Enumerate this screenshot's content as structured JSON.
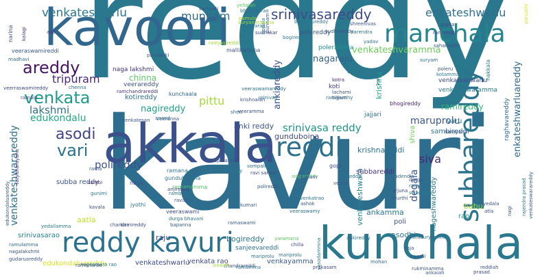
{
  "words": [
    {
      "text": "reddy",
      "color": "#2a788e"
    },
    {
      "text": "kavuri",
      "color": "#2d6e8e"
    },
    {
      "text": "kavoori",
      "color": "#31668e"
    },
    {
      "text": "akkala",
      "color": "#3b518b"
    },
    {
      "text": "kunchala",
      "color": "#2a788e"
    },
    {
      "text": "reddy kavuri",
      "color": "#2c728e"
    },
    {
      "text": "manchala",
      "color": "#25858e"
    },
    {
      "text": "subbareddy",
      "color": "#2c738e"
    },
    {
      "text": "reddi",
      "color": "#2d708e"
    },
    {
      "text": "srinivasareddy",
      "color": "#3e4c8a"
    },
    {
      "text": "venkateswarlu",
      "color": "#2a778e"
    },
    {
      "text": "areddy",
      "color": "#471365"
    },
    {
      "text": "venkata",
      "color": "#1f9a8a"
    },
    {
      "text": "asodi",
      "color": "#414487"
    },
    {
      "text": "vari",
      "color": "#2c728e"
    },
    {
      "text": "munnam",
      "color": "#31688e"
    },
    {
      "text": "enkateshwarlu",
      "color": "#2e6f8e"
    },
    {
      "text": "venkateshvaramma",
      "color": "#6ece58"
    },
    {
      "text": "nagaraju",
      "color": "#355f8d"
    },
    {
      "text": "tripuram",
      "color": "#482979"
    },
    {
      "text": "lakshmi",
      "color": "#2c718e"
    },
    {
      "text": "edukondalu",
      "color": "#22a884"
    },
    {
      "text": "pittu",
      "color": "#a5db36"
    },
    {
      "text": "nagireddy",
      "color": "#1fa088"
    },
    {
      "text": "ankiareddy",
      "color": "#3a548c"
    },
    {
      "text": "srinivasa reddy",
      "color": "#1f968b"
    },
    {
      "text": "maruprolu",
      "color": "#39568c"
    },
    {
      "text": "ramireddy",
      "color": "#35b779"
    },
    {
      "text": "venkateshwarareddy",
      "color": "#2e6f8e"
    },
    {
      "text": "polireddy",
      "color": "#3a538b"
    },
    {
      "text": "siva",
      "color": "#482576"
    },
    {
      "text": "degala",
      "color": "#3c4f8a"
    },
    {
      "text": "enkateshwarluareddy",
      "color": "#31688e"
    },
    {
      "text": "kotireddy",
      "color": "#2d708e"
    },
    {
      "text": "chinna",
      "color": "#5ec962"
    },
    {
      "text": "anki reddy",
      "color": "#3b528b"
    },
    {
      "text": "gunduboina",
      "color": "#3e4989"
    },
    {
      "text": "krishnareddi",
      "color": "#2c738e"
    },
    {
      "text": "venkateshwara",
      "color": "#26828e"
    },
    {
      "text": "subbareddi",
      "color": "#46337f"
    },
    {
      "text": "ankamma",
      "color": "#2a788e"
    },
    {
      "text": "babu",
      "color": "#a0da39"
    },
    {
      "text": "bogireddy",
      "color": "#2c728e"
    },
    {
      "text": "raju",
      "color": "#3b518b"
    },
    {
      "text": "sanjeevareddi",
      "color": "#2d708e"
    },
    {
      "text": "venkata rao",
      "color": "#3e4a89"
    },
    {
      "text": "venkayamma",
      "color": "#38588c"
    },
    {
      "text": "venkateshwarlu",
      "color": "#3f4788"
    },
    {
      "text": "asodhi",
      "color": "#2c738e"
    },
    {
      "text": "poli",
      "color": "#3a548c"
    },
    {
      "text": "rao",
      "color": "#1e9c89"
    },
    {
      "text": "nageshwareddy",
      "color": "#2a788e"
    },
    {
      "text": "sambireddi",
      "color": "#2d718e"
    },
    {
      "text": "krishna",
      "color": "#1fa187"
    },
    {
      "text": "aatla",
      "color": "#c2df23"
    },
    {
      "text": "subba reddy",
      "color": "#3b528b"
    },
    {
      "text": "srinivasarao",
      "color": "#26828e"
    },
    {
      "text": "edukondaluareddy",
      "color": "#d8e219"
    },
    {
      "text": "varu",
      "color": "#2a788e"
    },
    {
      "text": "shiva",
      "color": "#6ece58"
    },
    {
      "text": "raghavareddy",
      "color": "#31688e"
    },
    {
      "text": "venkateswaramma",
      "color": "#2a788e"
    },
    {
      "text": "venkateshwarlu",
      "color": "#3e4a89"
    },
    {
      "text": "bhogireddy",
      "color": "#482475"
    },
    {
      "text": "koti",
      "color": "#443983"
    },
    {
      "text": "kotra",
      "color": "#481f70"
    },
    {
      "text": "lachami",
      "color": "#3a548c"
    },
    {
      "text": "veerareddy",
      "color": "#3b528b"
    },
    {
      "text": "polereddy",
      "color": "#3a538b"
    },
    {
      "text": "poleramma",
      "color": "#1f948c"
    },
    {
      "text": "bysani",
      "color": "#2a778e"
    },
    {
      "text": "jajjari",
      "color": "#2c728e"
    },
    {
      "text": "naga lakshmi",
      "color": "#46317e"
    },
    {
      "text": "kunchaala",
      "color": "#31688e"
    },
    {
      "text": "ramchandrareddi",
      "color": "#46317e"
    },
    {
      "text": "gunduboyina",
      "color": "#2c738e"
    },
    {
      "text": "veeramma",
      "color": "#3e4a89"
    },
    {
      "text": "ramana",
      "color": "#2c728e"
    },
    {
      "text": "naga",
      "color": "#3b528b"
    },
    {
      "text": "jyothi",
      "color": "#2d718e"
    },
    {
      "text": "veeraswami",
      "color": "#3e4989"
    },
    {
      "text": "ramanamma",
      "color": "#52c569"
    },
    {
      "text": "sambi",
      "color": "#46317e"
    },
    {
      "text": "gunimi",
      "color": "#2a788e"
    },
    {
      "text": "ravuri",
      "color": "#3a548c"
    },
    {
      "text": "rambabu",
      "color": "#2d708e"
    },
    {
      "text": "anjireddy",
      "color": "#414487"
    },
    {
      "text": "mariprolu",
      "color": "#2c728e"
    },
    {
      "text": "chandrareddi",
      "color": "#3b528b"
    },
    {
      "text": "brahmareddy",
      "color": "#2a788e"
    },
    {
      "text": "tirupatamma",
      "color": "#3b518b"
    },
    {
      "text": "singareddy",
      "color": "#5ec962"
    },
    {
      "text": "rani",
      "color": "#2d708e"
    },
    {
      "text": "veera",
      "color": "#38588c"
    },
    {
      "text": "gopi",
      "color": "#3e4a89"
    },
    {
      "text": "pynam",
      "color": "#3b528b"
    },
    {
      "text": "venkatrao",
      "color": "#2c738e"
    },
    {
      "text": "kumari",
      "color": "#3a538b"
    },
    {
      "text": "ashok",
      "color": "#38588c"
    },
    {
      "text": "veeraswamy",
      "color": "#2d708e"
    },
    {
      "text": "murthi",
      "color": "#3b528b"
    },
    {
      "text": "sivareddy",
      "color": "#2a788e"
    },
    {
      "text": "ramarao",
      "color": "#2d708e"
    },
    {
      "text": "arjuna",
      "color": "#3e4a89"
    },
    {
      "text": "durga",
      "color": "#3b528b"
    },
    {
      "text": "nadendla",
      "color": "#31688e"
    },
    {
      "text": "edda",
      "color": "#2c728e"
    },
    {
      "text": "sudhakar",
      "color": "#3e4989"
    },
    {
      "text": "anji",
      "color": "#46317e"
    },
    {
      "text": "ramireddi",
      "color": "#3e4a89"
    },
    {
      "text": "bikshalureddy",
      "color": "#2c738e"
    },
    {
      "text": "shreenivas",
      "color": "#3a548c"
    },
    {
      "text": "narendra",
      "color": "#2d708e"
    },
    {
      "text": "bogireddi",
      "color": "#2a788e"
    },
    {
      "text": "ramjogireddi",
      "color": "#a0da39"
    },
    {
      "text": "veeraswamireddi",
      "color": "#38588c"
    },
    {
      "text": "pandanki",
      "color": "#3b528b"
    },
    {
      "text": "madhavi",
      "color": "#31688e"
    },
    {
      "text": "veerraswamireddy",
      "color": "#3e4989"
    },
    {
      "text": "chenna",
      "color": "#2d708e"
    },
    {
      "text": "venkatesan",
      "color": "#3b528b"
    },
    {
      "text": "sheo",
      "color": "#2c728e"
    },
    {
      "text": "veeranna",
      "color": "#3a548c"
    },
    {
      "text": "rama",
      "color": "#38588c"
    },
    {
      "text": "kavala",
      "color": "#3e4a89"
    },
    {
      "text": "yedallamma",
      "color": "#2a788e"
    },
    {
      "text": "ramulamma",
      "color": "#2d708e"
    },
    {
      "text": "nagalakshmi",
      "color": "#3b528b"
    },
    {
      "text": "gudaruareddy",
      "color": "#3a548c"
    },
    {
      "text": "nagesmara rao",
      "color": "#2c738e"
    },
    {
      "text": "yaramana",
      "color": "#5ec962"
    },
    {
      "text": "ankireddy",
      "color": "#2c728e"
    },
    {
      "text": "chilla",
      "color": "#3e4989"
    },
    {
      "text": "anasuryamma",
      "color": "#31688e"
    },
    {
      "text": "yedala",
      "color": "#3b528b"
    },
    {
      "text": "atla",
      "color": "#3e4a89"
    },
    {
      "text": "rajendra prasad",
      "color": "#2d708e"
    },
    {
      "text": "venkateswarareddy",
      "color": "#3a548c"
    },
    {
      "text": "satyanarayana",
      "color": "#46317e"
    },
    {
      "text": "edukondaluareddy",
      "color": "#3b528b"
    },
    {
      "text": "yasodammna",
      "color": "#2a788e"
    },
    {
      "text": "nagi",
      "color": "#3e4a89"
    },
    {
      "text": "swami",
      "color": "#3b528b"
    },
    {
      "text": "sompalli",
      "color": "#2c728e"
    },
    {
      "text": "bijjam",
      "color": "#3e4989"
    },
    {
      "text": "ramaswami",
      "color": "#38588c"
    },
    {
      "text": "mariprolu",
      "color": "#2d708e"
    },
    {
      "text": "saharaeddi",
      "color": "#3a548c"
    },
    {
      "text": "narina",
      "color": "#3e4a89"
    },
    {
      "text": "nakkala",
      "color": "#2a788e"
    },
    {
      "text": "kalagi",
      "color": "#46317e"
    },
    {
      "text": "appaia",
      "color": "#2a788e"
    },
    {
      "text": "punnam",
      "color": "#3b528b"
    },
    {
      "text": "srinivas",
      "color": "#2a788e"
    },
    {
      "text": "ravi sankar",
      "color": "#3e4989"
    },
    {
      "text": "yellaiah",
      "color": "#5ec962"
    },
    {
      "text": "polireddi",
      "color": "#38588c"
    },
    {
      "text": "pamula",
      "color": "#a0da39"
    },
    {
      "text": "vallapu",
      "color": "#2d708e"
    },
    {
      "text": "subbarao",
      "color": "#2c728e"
    },
    {
      "text": "kamireddy",
      "color": "#3e4a89"
    },
    {
      "text": "chandra",
      "color": "#3b528b"
    },
    {
      "text": "durga bhavani",
      "color": "#2c728e"
    },
    {
      "text": "suryanarayana",
      "color": "#a0da39"
    },
    {
      "text": "mallikarjuna",
      "color": "#3b528b"
    },
    {
      "text": "bhaskar rao",
      "color": "#2d708e"
    },
    {
      "text": "paruathi",
      "color": "#d8e219"
    },
    {
      "text": "gupta",
      "color": "#3e4989"
    },
    {
      "text": "poleru",
      "color": "#3a548c"
    },
    {
      "text": "sampati",
      "color": "#3b528b"
    },
    {
      "text": "kotamma",
      "color": "#2a788e"
    },
    {
      "text": "ramalu",
      "color": "#3e4a89"
    },
    {
      "text": "veeraswamareddy",
      "color": "#2c728e"
    },
    {
      "text": "krishnaiah",
      "color": "#3b528b"
    },
    {
      "text": "sudhareddy",
      "color": "#3a548c"
    },
    {
      "text": "rammurthy",
      "color": "#2d708e"
    },
    {
      "text": "mohan",
      "color": "#31688e"
    },
    {
      "text": "raja",
      "color": "#3b528b"
    },
    {
      "text": "narayana",
      "color": "#3e4989"
    },
    {
      "text": "sivaiah",
      "color": "#a0da39"
    },
    {
      "text": "yadav",
      "color": "#2a788e"
    },
    {
      "text": "bapanna",
      "color": "#38588c"
    },
    {
      "text": "suryam",
      "color": "#2c728e"
    },
    {
      "text": "ramanarao",
      "color": "#3b528b"
    },
    {
      "text": "prasad",
      "color": "#3e4a89"
    },
    {
      "text": "anand",
      "color": "#2d708e"
    },
    {
      "text": "rukminamma",
      "color": "#3a548c"
    },
    {
      "text": "ramamma",
      "color": "#2a788e"
    },
    {
      "text": "reddiah",
      "color": "#3b528b"
    },
    {
      "text": "prakasam",
      "color": "#3e4989"
    },
    {
      "text": "ankaiah",
      "color": "#38588c"
    },
    {
      "text": "ramakrishna",
      "color": "#2c728e"
    }
  ]
}
